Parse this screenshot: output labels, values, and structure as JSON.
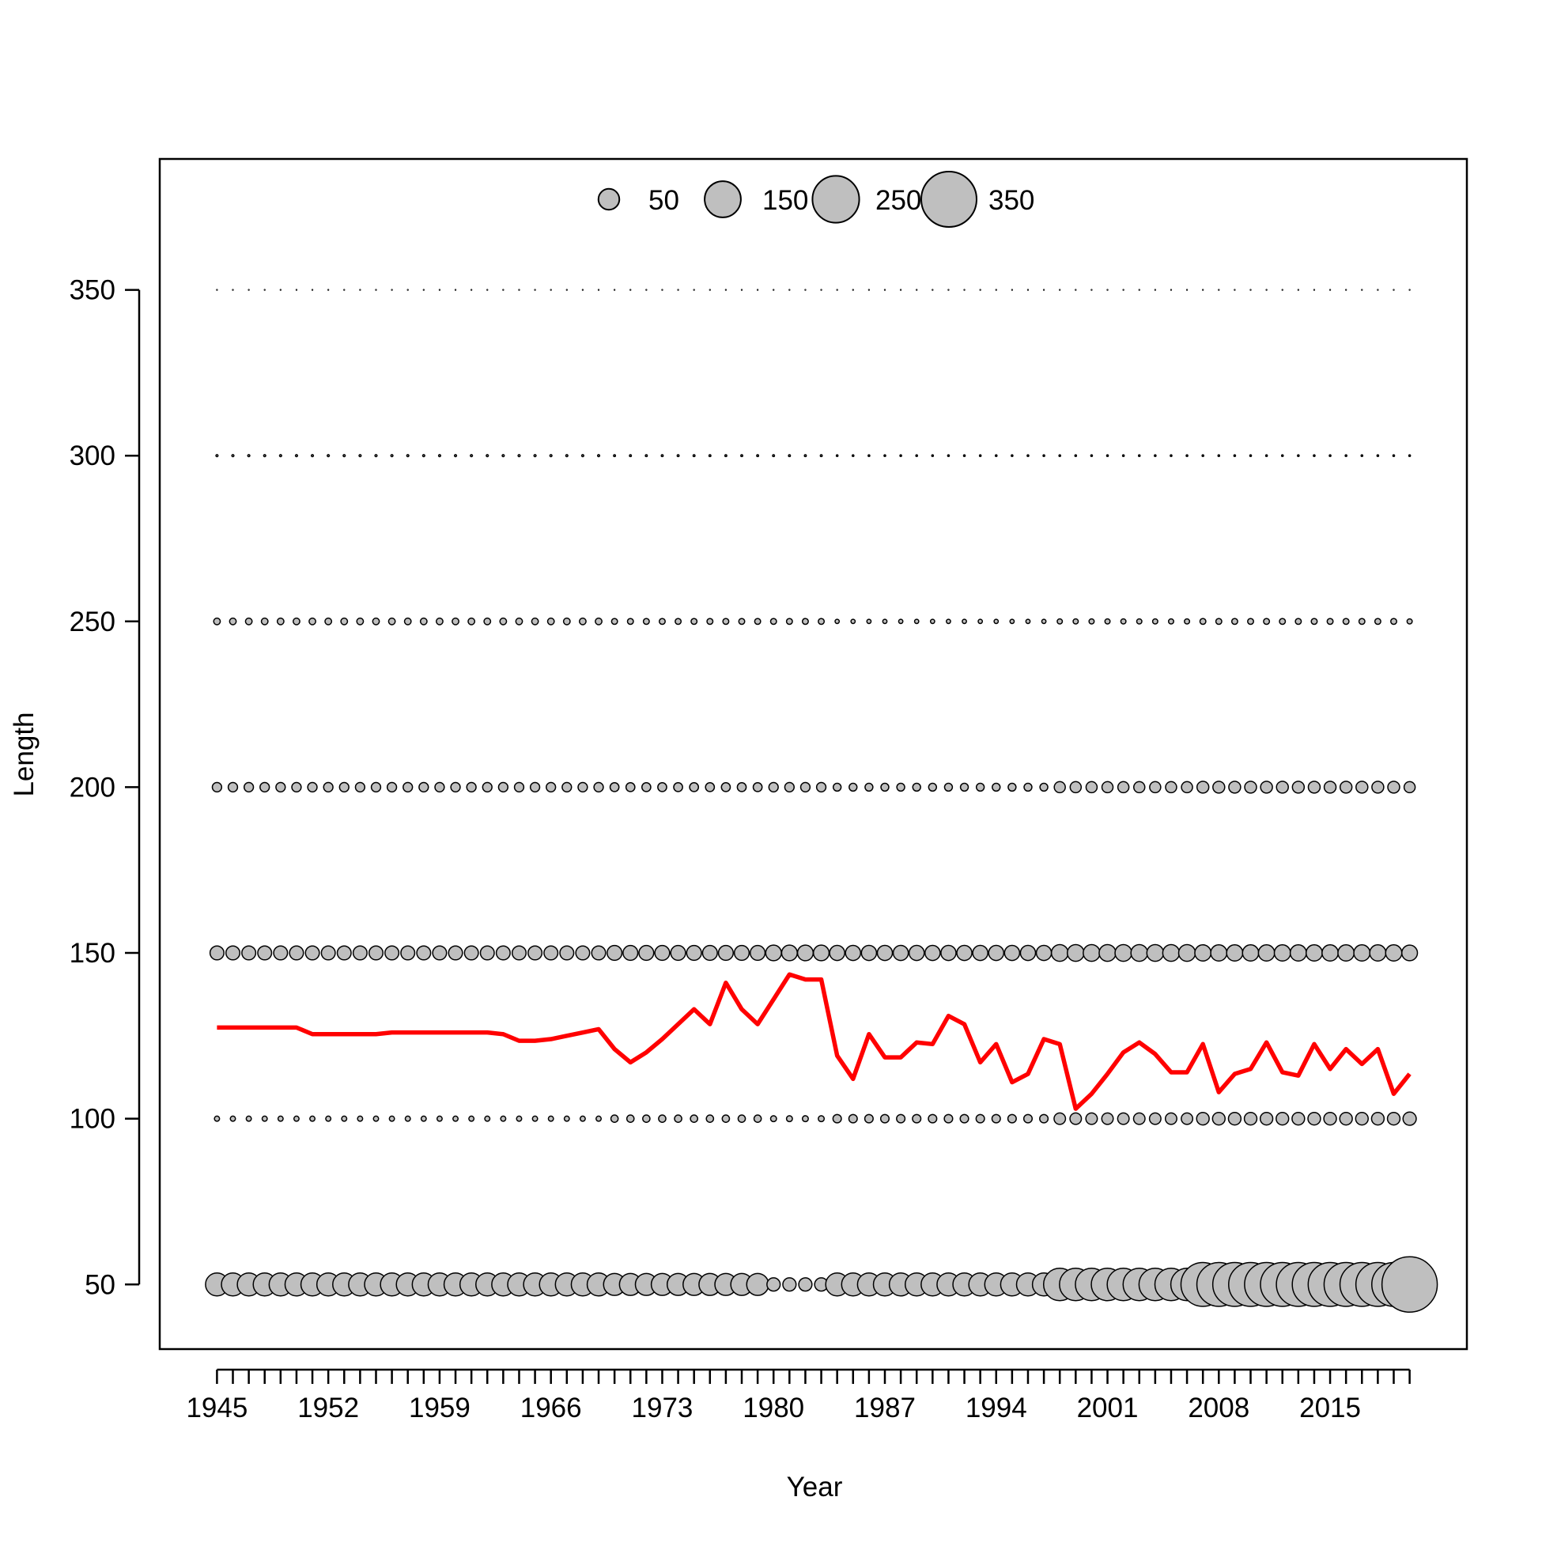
{
  "chart_data": {
    "type": "bubble",
    "xlabel": "Year",
    "ylabel": "Length",
    "x": [
      1945,
      1946,
      1947,
      1948,
      1949,
      1950,
      1951,
      1952,
      1953,
      1954,
      1955,
      1956,
      1957,
      1958,
      1959,
      1960,
      1961,
      1962,
      1963,
      1964,
      1965,
      1966,
      1967,
      1968,
      1969,
      1970,
      1971,
      1972,
      1973,
      1974,
      1975,
      1976,
      1977,
      1978,
      1979,
      1980,
      1981,
      1982,
      1983,
      1984,
      1985,
      1986,
      1987,
      1988,
      1989,
      1990,
      1991,
      1992,
      1993,
      1994,
      1995,
      1996,
      1997,
      1998,
      1999,
      2000,
      2001,
      2002,
      2003,
      2004,
      2005,
      2006,
      2007,
      2008,
      2009,
      2010,
      2011,
      2012,
      2013,
      2014,
      2015,
      2016,
      2017,
      2018,
      2019,
      2020
    ],
    "lengths": [
      50,
      100,
      150,
      200,
      250,
      300,
      350
    ],
    "sizes": [
      [
        60,
        3,
        22,
        10,
        5,
        0.5,
        0.05
      ],
      [
        60,
        3,
        22,
        10,
        5,
        0.5,
        0.05
      ],
      [
        60,
        3,
        22,
        10,
        5,
        0.5,
        0.05
      ],
      [
        60,
        3,
        22,
        10,
        5,
        0.5,
        0.05
      ],
      [
        60,
        3,
        22,
        10,
        5,
        0.5,
        0.05
      ],
      [
        60,
        3,
        22,
        10,
        5,
        0.5,
        0.05
      ],
      [
        60,
        3,
        22,
        10,
        5,
        0.5,
        0.05
      ],
      [
        60,
        3,
        22,
        10,
        5,
        0.5,
        0.05
      ],
      [
        60,
        3,
        22,
        10,
        5,
        0.5,
        0.05
      ],
      [
        60,
        3,
        22,
        10,
        5,
        0.5,
        0.05
      ],
      [
        60,
        3,
        22,
        10,
        5,
        0.5,
        0.05
      ],
      [
        60,
        3,
        22,
        10,
        5,
        0.5,
        0.05
      ],
      [
        60,
        3,
        22,
        10,
        5,
        0.5,
        0.05
      ],
      [
        60,
        3,
        22,
        10,
        5,
        0.5,
        0.05
      ],
      [
        60,
        3,
        22,
        10,
        5,
        0.5,
        0.05
      ],
      [
        60,
        3,
        22,
        10,
        5,
        0.5,
        0.05
      ],
      [
        60,
        3,
        22,
        10,
        5,
        0.5,
        0.05
      ],
      [
        60,
        3,
        22,
        10,
        5,
        0.5,
        0.05
      ],
      [
        60,
        3,
        22,
        10,
        5,
        0.5,
        0.05
      ],
      [
        60,
        3,
        22,
        10,
        5,
        0.5,
        0.05
      ],
      [
        60,
        3,
        22,
        10,
        5,
        0.5,
        0.05
      ],
      [
        60,
        3,
        22,
        10,
        5,
        0.5,
        0.05
      ],
      [
        60,
        3,
        22,
        10,
        5,
        0.5,
        0.05
      ],
      [
        60,
        3,
        22,
        10,
        5,
        0.5,
        0.05
      ],
      [
        60,
        3,
        22,
        10,
        5,
        0.5,
        0.05
      ],
      [
        55,
        6,
        25,
        9,
        4,
        0.4,
        0.05
      ],
      [
        55,
        6,
        25,
        9,
        4,
        0.4,
        0.05
      ],
      [
        55,
        6,
        25,
        9,
        4,
        0.4,
        0.05
      ],
      [
        55,
        6,
        25,
        9,
        4,
        0.4,
        0.05
      ],
      [
        55,
        6,
        25,
        9,
        4,
        0.4,
        0.05
      ],
      [
        55,
        6,
        25,
        9,
        4,
        0.4,
        0.05
      ],
      [
        55,
        6,
        25,
        9,
        4,
        0.4,
        0.05
      ],
      [
        55,
        6,
        25,
        9,
        4,
        0.4,
        0.05
      ],
      [
        55,
        6,
        25,
        9,
        4,
        0.4,
        0.05
      ],
      [
        55,
        6,
        25,
        9,
        4,
        0.4,
        0.05
      ],
      [
        20,
        4,
        28,
        10,
        4,
        0.4,
        0.05
      ],
      [
        20,
        4,
        28,
        10,
        4,
        0.4,
        0.05
      ],
      [
        20,
        4,
        28,
        10,
        4,
        0.4,
        0.05
      ],
      [
        20,
        4,
        28,
        10,
        4,
        0.4,
        0.05
      ],
      [
        60,
        8,
        26,
        7,
        2,
        0.3,
        0.05
      ],
      [
        60,
        8,
        26,
        7,
        2,
        0.3,
        0.05
      ],
      [
        60,
        8,
        26,
        7,
        2,
        0.3,
        0.05
      ],
      [
        60,
        8,
        26,
        7,
        2,
        0.3,
        0.05
      ],
      [
        60,
        8,
        26,
        7,
        2,
        0.3,
        0.05
      ],
      [
        60,
        8,
        26,
        7,
        2,
        0.3,
        0.05
      ],
      [
        60,
        8,
        26,
        7,
        2,
        0.3,
        0.05
      ],
      [
        60,
        8,
        26,
        7,
        2,
        0.3,
        0.05
      ],
      [
        60,
        8,
        26,
        7,
        2,
        0.3,
        0.05
      ],
      [
        60,
        8,
        26,
        7,
        2,
        0.3,
        0.05
      ],
      [
        60,
        8,
        26,
        7,
        2,
        0.3,
        0.05
      ],
      [
        60,
        8,
        26,
        7,
        2,
        0.3,
        0.05
      ],
      [
        60,
        8,
        26,
        7,
        2,
        0.3,
        0.05
      ],
      [
        60,
        8,
        26,
        7,
        2,
        0.3,
        0.05
      ],
      [
        120,
        15,
        32,
        14,
        3,
        0.3,
        0.05
      ],
      [
        120,
        15,
        32,
        14,
        3,
        0.3,
        0.05
      ],
      [
        120,
        15,
        32,
        14,
        3,
        0.3,
        0.05
      ],
      [
        120,
        15,
        32,
        14,
        3,
        0.3,
        0.05
      ],
      [
        120,
        15,
        32,
        14,
        3,
        0.3,
        0.05
      ],
      [
        120,
        15,
        32,
        14,
        3,
        0.3,
        0.05
      ],
      [
        120,
        15,
        32,
        14,
        3,
        0.3,
        0.05
      ],
      [
        120,
        15,
        32,
        14,
        3,
        0.3,
        0.05
      ],
      [
        120,
        15,
        32,
        14,
        3,
        0.3,
        0.05
      ],
      [
        220,
        18,
        30,
        16,
        4,
        0.3,
        0.05
      ],
      [
        220,
        18,
        30,
        16,
        4,
        0.3,
        0.05
      ],
      [
        220,
        18,
        30,
        16,
        4,
        0.3,
        0.05
      ],
      [
        220,
        18,
        30,
        16,
        4,
        0.3,
        0.05
      ],
      [
        220,
        18,
        30,
        16,
        4,
        0.3,
        0.05
      ],
      [
        220,
        18,
        30,
        16,
        4,
        0.3,
        0.05
      ],
      [
        220,
        18,
        30,
        16,
        4,
        0.3,
        0.05
      ],
      [
        220,
        18,
        30,
        16,
        4,
        0.3,
        0.05
      ],
      [
        220,
        18,
        30,
        16,
        4,
        0.3,
        0.05
      ],
      [
        220,
        18,
        30,
        16,
        4,
        0.3,
        0.05
      ],
      [
        220,
        18,
        30,
        16,
        4,
        0.3,
        0.05
      ],
      [
        220,
        18,
        30,
        16,
        4,
        0.3,
        0.05
      ],
      [
        220,
        18,
        30,
        16,
        4,
        0.3,
        0.05
      ],
      [
        350,
        20,
        28,
        14,
        3,
        0.3,
        0.05
      ]
    ],
    "bubble_color": "#bfbfbf",
    "mean": {
      "color": "#ff0000",
      "values": [
        127.5,
        127.5,
        127.5,
        127.5,
        127.5,
        127.5,
        125.5,
        125.5,
        125.5,
        125.5,
        125.5,
        126,
        126,
        126,
        126,
        126,
        126,
        126,
        125.5,
        123.5,
        123.5,
        124,
        125,
        126,
        127,
        121,
        117,
        120,
        124,
        128.5,
        133,
        128.5,
        141,
        133,
        128.5,
        136,
        143.5,
        142,
        142,
        119,
        112,
        125.5,
        118.5,
        118.5,
        123,
        122.5,
        131,
        128.5,
        117,
        122.5,
        111,
        113.5,
        124,
        122.5,
        103,
        107.5,
        113.5,
        120,
        123,
        119.5,
        114,
        114,
        122.5,
        108,
        113.5,
        115,
        123,
        114,
        113,
        122.5,
        115,
        121,
        116.5,
        121,
        107.5,
        113.5
      ]
    },
    "legend_sizes": [
      50,
      150,
      250,
      350
    ],
    "xlim": [
      1941.4,
      2023.6
    ],
    "ylim": [
      30.5,
      389.5
    ],
    "xticks": [
      1945,
      1952,
      1959,
      1966,
      1973,
      1980,
      1987,
      1994,
      2001,
      2008,
      2015
    ],
    "yticks": [
      50,
      100,
      150,
      200,
      250,
      300,
      350
    ]
  }
}
